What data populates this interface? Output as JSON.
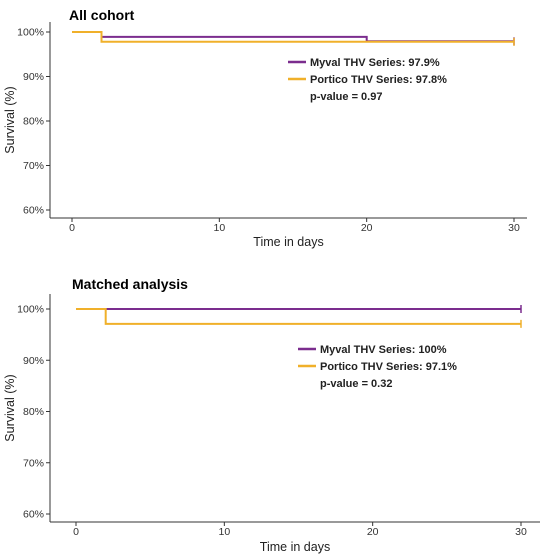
{
  "chart_data": [
    {
      "type": "line",
      "title": "All cohort",
      "xlabel": "Time in days",
      "ylabel": "Survival (%)",
      "xlim": [
        0,
        30
      ],
      "ylim": [
        0.6,
        1.0
      ],
      "x_ticks": [
        0,
        10,
        20,
        30
      ],
      "x_tick_labels": [
        "0",
        "10",
        "20",
        "30"
      ],
      "y_ticks": [
        0.6,
        0.7,
        0.8,
        0.9,
        1.0
      ],
      "y_tick_labels": [
        "60%",
        "70%",
        "80%",
        "90%",
        "100%"
      ],
      "grid": false,
      "legend": "center-right",
      "series": [
        {
          "label": "Myval THV Series: 97.9%",
          "color": "#7b2d8e",
          "x": [
            0,
            2,
            2,
            20,
            20,
            30
          ],
          "y": [
            1.0,
            1.0,
            0.989,
            0.989,
            0.979,
            0.979
          ]
        },
        {
          "label": "Portico THV Series: 97.8%",
          "color": "#f0b02a",
          "x": [
            0,
            2,
            2,
            30
          ],
          "y": [
            1.0,
            1.0,
            0.978,
            0.978
          ]
        }
      ],
      "annotation": "p-value = 0.97"
    },
    {
      "type": "line",
      "title": "Matched analysis",
      "xlabel": "Time in days",
      "ylabel": "Survival (%)",
      "xlim": [
        0,
        30
      ],
      "ylim": [
        0.6,
        1.0
      ],
      "x_ticks": [
        0,
        10,
        20,
        30
      ],
      "x_tick_labels": [
        "0",
        "10",
        "20",
        "30"
      ],
      "y_ticks": [
        0.6,
        0.7,
        0.8,
        0.9,
        1.0
      ],
      "y_tick_labels": [
        "60%",
        "70%",
        "80%",
        "90%",
        "100%"
      ],
      "grid": false,
      "legend": "center-right",
      "series": [
        {
          "label": "Myval THV Series: 100%",
          "color": "#7b2d8e",
          "x": [
            0,
            30
          ],
          "y": [
            1.0,
            1.0
          ]
        },
        {
          "label": "Portico THV Series: 97.1%",
          "color": "#f0b02a",
          "x": [
            0,
            2,
            2,
            30
          ],
          "y": [
            1.0,
            1.0,
            0.971,
            0.971
          ]
        }
      ],
      "annotation": "p-value = 0.32"
    }
  ]
}
